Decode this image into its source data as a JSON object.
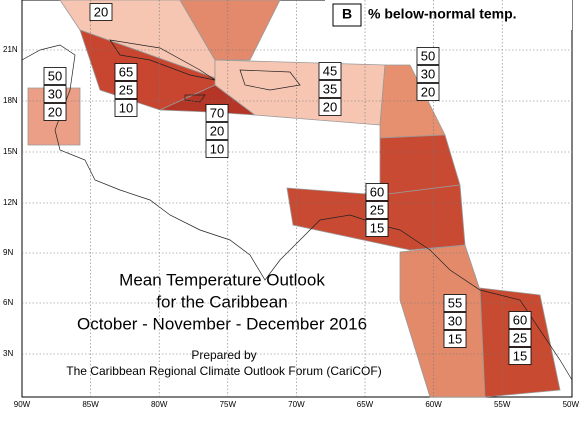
{
  "legend": {
    "key": "B",
    "label": "% below-normal temp."
  },
  "title": [
    "Mean Temperature Outlook",
    "for the Caribbean",
    "October - November - December 2016"
  ],
  "credit": [
    "Prepared by",
    "The Caribbean Regional Climate Outlook Forum (CariCOF)"
  ],
  "lat_labels": [
    "21N",
    "18N",
    "15N",
    "12N",
    "9N",
    "6N",
    "3N"
  ],
  "lon_labels": [
    "90W",
    "85W",
    "80W",
    "75W",
    "70W",
    "65W",
    "60W",
    "55W",
    "50W"
  ],
  "regions": [
    {
      "values": [
        20
      ]
    },
    {
      "values": [
        50,
        30,
        20
      ]
    },
    {
      "values": [
        65,
        25,
        10
      ]
    },
    {
      "values": [
        70,
        20,
        10
      ]
    },
    {
      "values": [
        45,
        35,
        20
      ]
    },
    {
      "values": [
        50,
        30,
        20
      ]
    },
    {
      "values": [
        60,
        25,
        15
      ]
    },
    {
      "values": [
        55,
        30,
        15
      ]
    },
    {
      "values": [
        60,
        25,
        15
      ]
    }
  ]
}
